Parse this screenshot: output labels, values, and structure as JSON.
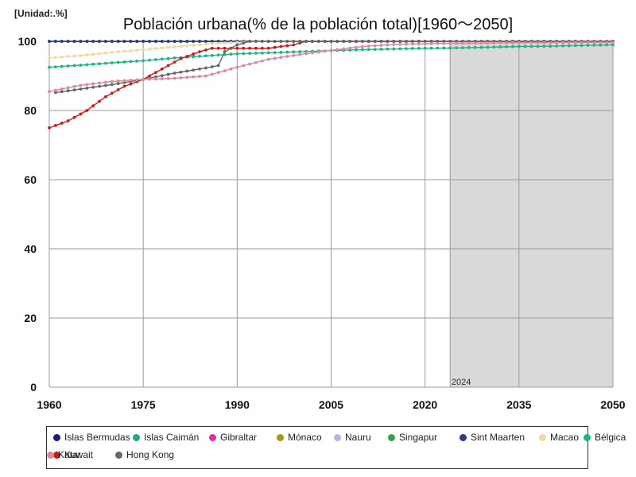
{
  "unit_label": "[Unidad:.%]",
  "chart_data": {
    "type": "line",
    "title": "Población urbana(% de la población total)[1960～2050]",
    "xlabel": "",
    "ylabel": "",
    "xlim": [
      1960,
      2050
    ],
    "ylim": [
      0,
      100
    ],
    "x_ticks": [
      1960,
      1975,
      1990,
      2005,
      2020,
      2035,
      2050
    ],
    "y_ticks": [
      0,
      20,
      40,
      60,
      80,
      100
    ],
    "grid": true,
    "legend_position": "bottom",
    "forecast_region": {
      "start": 2024,
      "end": 2050,
      "label": "2024"
    },
    "series": [
      {
        "name": "Islas Bermudas",
        "color": "#1a1a8c",
        "points": [
          [
            1960,
            100
          ],
          [
            2050,
            100
          ]
        ]
      },
      {
        "name": "Islas Caimán",
        "color": "#1aaa8c",
        "points": [
          [
            1960,
            100
          ],
          [
            2050,
            100
          ]
        ]
      },
      {
        "name": "Gibraltar",
        "color": "#e02da0",
        "points": [
          [
            1960,
            100
          ],
          [
            2050,
            100
          ]
        ]
      },
      {
        "name": "Mónaco",
        "color": "#a09a1a",
        "points": [
          [
            1960,
            100
          ],
          [
            2050,
            100
          ]
        ]
      },
      {
        "name": "Nauru",
        "color": "#c0aee0",
        "points": [
          [
            1960,
            100
          ],
          [
            2050,
            100
          ]
        ]
      },
      {
        "name": "Singapur",
        "color": "#3aa04a",
        "points": [
          [
            1960,
            100
          ],
          [
            2050,
            100
          ]
        ]
      },
      {
        "name": "Sint Maarten",
        "color": "#2a3a8c",
        "points": [
          [
            1960,
            100
          ],
          [
            2050,
            100
          ]
        ]
      },
      {
        "name": "Macao",
        "color": "#f0d9a0",
        "points": [
          [
            1960,
            95.2
          ],
          [
            1965,
            95.9
          ],
          [
            1970,
            96.8
          ],
          [
            1975,
            97.6
          ],
          [
            1980,
            98.4
          ],
          [
            1985,
            99.2
          ],
          [
            1990,
            99.7
          ],
          [
            1995,
            100
          ],
          [
            2050,
            100
          ]
        ]
      },
      {
        "name": "Bélgica",
        "color": "#1ab880",
        "points": [
          [
            1960,
            92.5
          ],
          [
            1965,
            93.1
          ],
          [
            1970,
            93.8
          ],
          [
            1975,
            94.4
          ],
          [
            1980,
            95.2
          ],
          [
            1985,
            95.8
          ],
          [
            1990,
            96.4
          ],
          [
            1995,
            96.7
          ],
          [
            2000,
            97.0
          ],
          [
            2005,
            97.3
          ],
          [
            2010,
            97.6
          ],
          [
            2015,
            97.8
          ],
          [
            2020,
            98.0
          ],
          [
            2025,
            98.1
          ],
          [
            2030,
            98.3
          ],
          [
            2035,
            98.5
          ],
          [
            2040,
            98.6
          ],
          [
            2045,
            98.8
          ],
          [
            2050,
            99.0
          ]
        ]
      },
      {
        "name": "Kuwait",
        "color": "#cc1a1a",
        "points": [
          [
            1960,
            75
          ],
          [
            1963,
            77
          ],
          [
            1966,
            80
          ],
          [
            1969,
            84
          ],
          [
            1972,
            87
          ],
          [
            1975,
            89
          ],
          [
            1978,
            92
          ],
          [
            1981,
            95
          ],
          [
            1984,
            97
          ],
          [
            1986,
            98
          ],
          [
            1990,
            98
          ],
          [
            1995,
            98
          ],
          [
            1999,
            99
          ],
          [
            2001,
            100
          ],
          [
            2050,
            100
          ]
        ]
      },
      {
        "name": "Hong Kong",
        "color": "#666666",
        "points": [
          [
            1961,
            85.2
          ],
          [
            1965,
            86.2
          ],
          [
            1970,
            87.5
          ],
          [
            1975,
            89.0
          ],
          [
            1980,
            90.8
          ],
          [
            1985,
            92.3
          ],
          [
            1987,
            93.0
          ],
          [
            1988,
            97.0
          ],
          [
            1990,
            99.0
          ],
          [
            1992,
            100
          ],
          [
            2050,
            100
          ]
        ]
      },
      {
        "name": "Katar",
        "color": "#e08898",
        "points": [
          [
            1960,
            85.5
          ],
          [
            1965,
            87.3
          ],
          [
            1970,
            88.4
          ],
          [
            1975,
            89.0
          ],
          [
            1980,
            89.3
          ],
          [
            1985,
            90.0
          ],
          [
            1990,
            92.5
          ],
          [
            1995,
            94.8
          ],
          [
            2000,
            96.2
          ],
          [
            2005,
            97.4
          ],
          [
            2010,
            98.5
          ],
          [
            2015,
            99.1
          ],
          [
            2020,
            99.3
          ],
          [
            2025,
            99.4
          ],
          [
            2030,
            99.5
          ],
          [
            2035,
            99.6
          ],
          [
            2040,
            99.6
          ],
          [
            2045,
            99.7
          ],
          [
            2050,
            99.7
          ]
        ]
      }
    ]
  }
}
